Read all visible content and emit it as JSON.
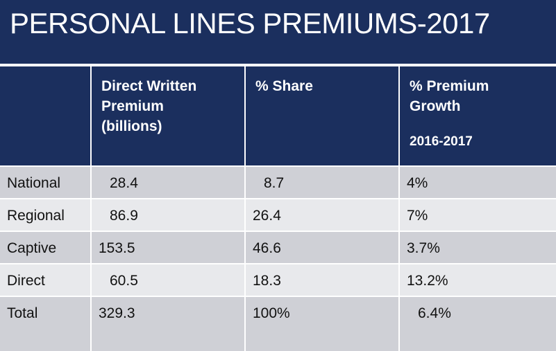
{
  "title": "PERSONAL LINES PREMIUMS-2017",
  "table": {
    "headers": {
      "col1_lines": [
        "Direct Written",
        "Premium",
        "(billions)"
      ],
      "col2": "% Share",
      "col3_lines": [
        "% Premium",
        "Growth"
      ],
      "col3_years": "2016-2017"
    },
    "rows": [
      {
        "category": "National",
        "premium": "28.4",
        "share": "8.7",
        "growth": "4%"
      },
      {
        "category": "Regional",
        "premium": "86.9",
        "share": "26.4",
        "growth": "7%"
      },
      {
        "category": "Captive",
        "premium": "153.5",
        "share": "46.6",
        "growth": "3.7%"
      },
      {
        "category": "Direct",
        "premium": "60.5",
        "share": "18.3",
        "growth": "13.2%"
      },
      {
        "category": "Total",
        "premium": "329.3",
        "share": "100%",
        "growth": "6.4%"
      }
    ]
  },
  "colors": {
    "header_background": "#1b2f5e",
    "row_dark": "#cfd0d6",
    "row_light": "#e8e9ec"
  }
}
